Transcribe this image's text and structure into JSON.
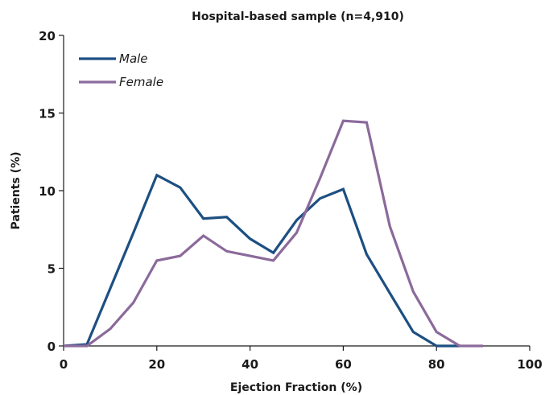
{
  "chart_data": {
    "type": "line",
    "title": "Hospital-based sample (n=4,910)",
    "xlabel": "Ejection Fraction (%)",
    "ylabel": "Patients (%)",
    "xlim": [
      0,
      100
    ],
    "ylim": [
      0,
      20
    ],
    "xticks": [
      0,
      20,
      40,
      60,
      80,
      100
    ],
    "yticks": [
      0,
      5,
      10,
      15,
      20
    ],
    "x_tick_labels": [
      "0",
      "20",
      "40",
      "60",
      "80",
      "100"
    ],
    "y_tick_labels": [
      "0",
      "5",
      "10",
      "15",
      "20"
    ],
    "grid": false,
    "legend_position": "top-left",
    "series": [
      {
        "name": "Male",
        "color": "#1d4f82",
        "x": [
          0,
          5,
          10,
          15,
          20,
          25,
          30,
          35,
          40,
          45,
          50,
          55,
          60,
          65,
          70,
          75,
          80,
          85
        ],
        "y": [
          0,
          0.1,
          3.7,
          7.3,
          11.0,
          10.2,
          8.2,
          8.3,
          6.9,
          6.0,
          8.1,
          9.5,
          10.1,
          5.9,
          3.4,
          0.9,
          0,
          0
        ]
      },
      {
        "name": "Female",
        "color": "#8b6a9b",
        "x": [
          0,
          5,
          10,
          15,
          20,
          25,
          30,
          35,
          40,
          45,
          50,
          55,
          60,
          65,
          70,
          75,
          80,
          85,
          90
        ],
        "y": [
          0,
          0,
          1.1,
          2.8,
          5.5,
          5.8,
          7.1,
          6.1,
          5.8,
          5.5,
          7.3,
          10.8,
          14.5,
          14.4,
          7.7,
          3.5,
          0.9,
          0,
          0
        ]
      }
    ]
  }
}
